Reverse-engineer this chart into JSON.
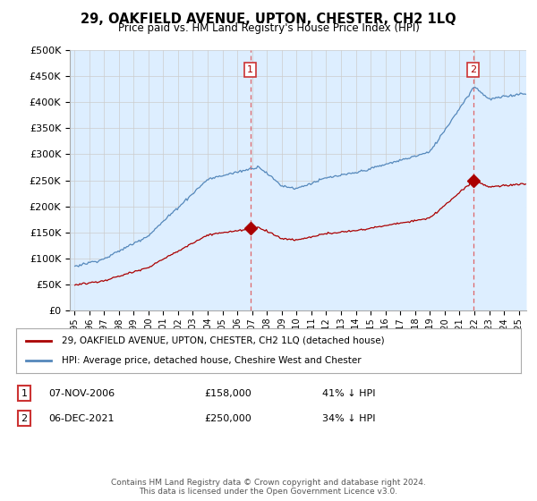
{
  "title": "29, OAKFIELD AVENUE, UPTON, CHESTER, CH2 1LQ",
  "subtitle": "Price paid vs. HM Land Registry's House Price Index (HPI)",
  "legend_label_red": "29, OAKFIELD AVENUE, UPTON, CHESTER, CH2 1LQ (detached house)",
  "legend_label_blue": "HPI: Average price, detached house, Cheshire West and Chester",
  "transaction1_date": "07-NOV-2006",
  "transaction1_price": "£158,000",
  "transaction1_hpi": "41% ↓ HPI",
  "transaction2_date": "06-DEC-2021",
  "transaction2_price": "£250,000",
  "transaction2_hpi": "34% ↓ HPI",
  "footer": "Contains HM Land Registry data © Crown copyright and database right 2024.\nThis data is licensed under the Open Government Licence v3.0.",
  "ylim": [
    0,
    500000
  ],
  "yticks": [
    0,
    50000,
    100000,
    150000,
    200000,
    250000,
    300000,
    350000,
    400000,
    450000,
    500000
  ],
  "red_color": "#aa0000",
  "blue_color": "#5588bb",
  "blue_fill_color": "#ddeeff",
  "dashed_color": "#dd4444",
  "background_color": "#ffffff",
  "grid_color": "#cccccc",
  "t1_year": 2006.875,
  "t2_year": 2021.917,
  "t1_price": 158000,
  "t2_price": 250000
}
